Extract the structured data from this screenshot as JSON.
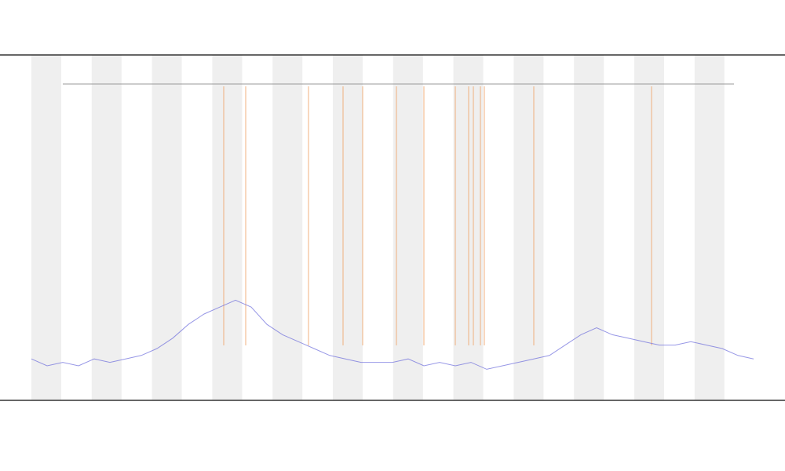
{
  "chart_data": {
    "type": "line",
    "x": [
      0,
      2,
      4,
      6,
      8,
      10,
      12,
      14,
      16,
      18,
      20,
      22,
      24,
      26,
      28,
      30,
      32,
      34,
      36,
      38,
      40,
      42,
      44,
      46,
      48,
      50,
      52,
      54,
      56,
      58,
      60,
      62,
      64,
      66,
      68,
      70,
      72,
      74,
      76,
      78,
      80,
      82,
      84,
      86,
      88,
      90,
      92
    ],
    "series": [
      {
        "color": "#6b6bdc",
        "values": [
          12,
          10,
          11,
          10,
          12,
          11,
          12,
          13,
          15,
          18,
          22,
          25,
          27,
          29,
          27,
          22,
          19,
          17,
          15,
          13,
          12,
          11,
          11,
          11,
          12,
          10,
          11,
          10,
          11,
          9,
          10,
          11,
          12,
          13,
          16,
          19,
          21,
          19,
          18,
          17,
          16,
          16,
          17,
          16,
          15,
          13,
          12
        ]
      }
    ],
    "events": {
      "color": "#f0a060",
      "x": [
        24.5,
        27.3,
        35.3,
        39.7,
        42.2,
        46.5,
        50,
        54,
        55.7,
        56.3,
        57.2,
        57.7,
        64,
        79
      ]
    },
    "xlim": [
      0,
      92
    ],
    "ylim": [
      0,
      100
    ]
  }
}
